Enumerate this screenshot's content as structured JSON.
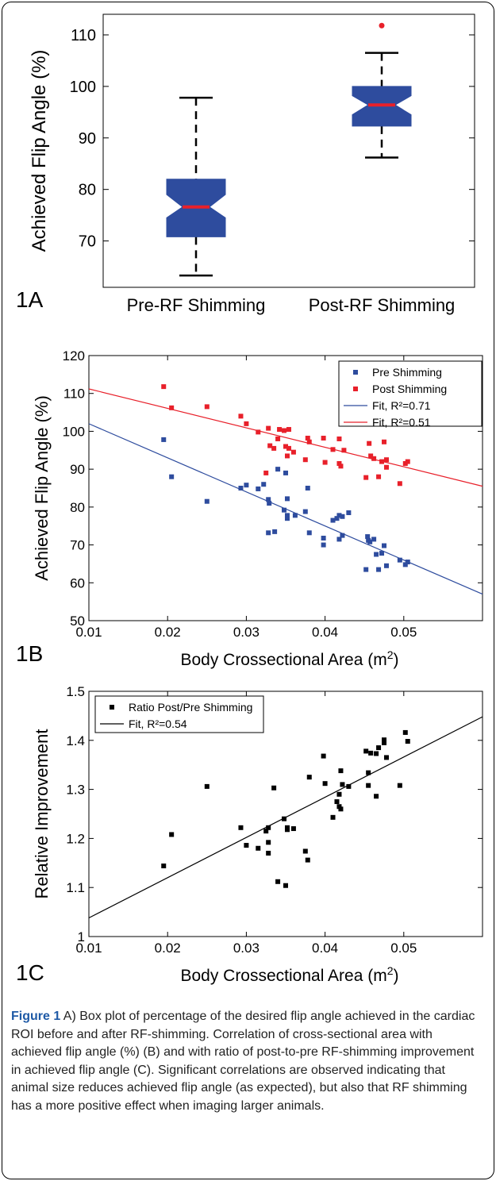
{
  "chart_data": [
    {
      "type": "box",
      "panel_label": "1A",
      "ylabel": "Achieved Flip Angle (%)",
      "ylim": [
        61,
        114
      ],
      "yticks": [
        70,
        80,
        90,
        100,
        110
      ],
      "categories": [
        "Pre-RF Shimming",
        "Post-RF Shimming"
      ],
      "boxes": [
        {
          "whisker_low": 63.3,
          "q1": 70.8,
          "notch_low": 74.5,
          "median": 76.6,
          "notch_high": 79.0,
          "q3": 82.0,
          "whisker_high": 97.8,
          "outliers": []
        },
        {
          "whisker_low": 86.2,
          "q1": 92.3,
          "notch_low": 94.5,
          "median": 96.4,
          "notch_high": 98.2,
          "q3": 100.0,
          "whisker_high": 106.5,
          "outliers": [
            111.8
          ]
        }
      ],
      "colors": {
        "box": "#2e4c9e",
        "median": "#e8202a",
        "outlier": "#e8202a"
      }
    },
    {
      "type": "scatter",
      "panel_label": "1B",
      "xlabel": "Body Crossectional Area (m",
      "xlabel_sup": "2",
      "xlabel_end": ")",
      "ylabel": "Achieved Flip Angle (%)",
      "xlim": [
        0.01,
        0.06
      ],
      "ylim": [
        50,
        120
      ],
      "xticks": [
        "0.01",
        "0.02",
        "0.03",
        "0.04",
        "0.05"
      ],
      "yticks": [
        "50",
        "60",
        "70",
        "80",
        "90",
        "100",
        "110",
        "120"
      ],
      "legend": [
        "Pre Shimming",
        "Post Shimming",
        "Fit, R²=0.71",
        "Fit, R²=0.51"
      ],
      "series": [
        {
          "name": "Pre Shimming",
          "color": "#2e4c9e",
          "points": [
            [
              0.0195,
              97.8
            ],
            [
              0.0205,
              88.0
            ],
            [
              0.025,
              81.5
            ],
            [
              0.0293,
              85.0
            ],
            [
              0.03,
              85.8
            ],
            [
              0.0315,
              84.8
            ],
            [
              0.0322,
              86.0
            ],
            [
              0.0328,
              73.2
            ],
            [
              0.0328,
              82.0
            ],
            [
              0.0329,
              81.0
            ],
            [
              0.0336,
              73.5
            ],
            [
              0.034,
              90.0
            ],
            [
              0.0348,
              79.2
            ],
            [
              0.035,
              89.0
            ],
            [
              0.0352,
              77.8
            ],
            [
              0.0352,
              77.0
            ],
            [
              0.0352,
              82.2
            ],
            [
              0.0362,
              77.8
            ],
            [
              0.0375,
              78.8
            ],
            [
              0.0378,
              85.0
            ],
            [
              0.038,
              73.2
            ],
            [
              0.0398,
              71.8
            ],
            [
              0.0398,
              70.0
            ],
            [
              0.041,
              76.5
            ],
            [
              0.0415,
              77.0
            ],
            [
              0.0418,
              77.8
            ],
            [
              0.0418,
              71.5
            ],
            [
              0.0422,
              77.5
            ],
            [
              0.0422,
              72.5
            ],
            [
              0.043,
              78.5
            ],
            [
              0.0452,
              63.5
            ],
            [
              0.0454,
              72.2
            ],
            [
              0.0455,
              71.2
            ],
            [
              0.0457,
              70.8
            ],
            [
              0.0462,
              71.5
            ],
            [
              0.0465,
              67.5
            ],
            [
              0.0468,
              63.5
            ],
            [
              0.0472,
              67.8
            ],
            [
              0.0475,
              69.8
            ],
            [
              0.0478,
              64.5
            ],
            [
              0.0495,
              66.0
            ],
            [
              0.0502,
              64.8
            ],
            [
              0.0505,
              65.5
            ]
          ]
        },
        {
          "name": "Post Shimming",
          "color": "#e8202a",
          "points": [
            [
              0.0195,
              111.8
            ],
            [
              0.0205,
              106.2
            ],
            [
              0.025,
              106.5
            ],
            [
              0.0293,
              104.0
            ],
            [
              0.03,
              102.0
            ],
            [
              0.0315,
              99.8
            ],
            [
              0.0325,
              89.0
            ],
            [
              0.0328,
              100.8
            ],
            [
              0.033,
              96.2
            ],
            [
              0.0335,
              95.5
            ],
            [
              0.034,
              98.0
            ],
            [
              0.0342,
              100.5
            ],
            [
              0.0348,
              100.2
            ],
            [
              0.035,
              96.0
            ],
            [
              0.0352,
              93.5
            ],
            [
              0.0354,
              95.5
            ],
            [
              0.0354,
              100.5
            ],
            [
              0.036,
              94.5
            ],
            [
              0.0375,
              92.5
            ],
            [
              0.0378,
              98.2
            ],
            [
              0.038,
              97.2
            ],
            [
              0.0398,
              98.2
            ],
            [
              0.04,
              91.8
            ],
            [
              0.041,
              95.2
            ],
            [
              0.0418,
              98.0
            ],
            [
              0.0418,
              91.5
            ],
            [
              0.042,
              90.8
            ],
            [
              0.0422,
              103.2
            ],
            [
              0.0424,
              95.0
            ],
            [
              0.0432,
              102.5
            ],
            [
              0.0452,
              87.8
            ],
            [
              0.0456,
              96.8
            ],
            [
              0.0458,
              93.5
            ],
            [
              0.0462,
              92.8
            ],
            [
              0.0468,
              88.0
            ],
            [
              0.0472,
              92.0
            ],
            [
              0.0475,
              97.2
            ],
            [
              0.0478,
              92.5
            ],
            [
              0.0478,
              90.5
            ],
            [
              0.0495,
              86.2
            ],
            [
              0.0502,
              91.5
            ],
            [
              0.0505,
              92.0
            ]
          ]
        }
      ],
      "fits": [
        {
          "name": "Fit, R²=0.71",
          "color": "#2e4c9e",
          "x": [
            0.01,
            0.06
          ],
          "y": [
            102.0,
            57.0
          ]
        },
        {
          "name": "Fit, R²=0.51",
          "color": "#e8202a",
          "x": [
            0.01,
            0.06
          ],
          "y": [
            111.2,
            85.5
          ]
        }
      ]
    },
    {
      "type": "scatter",
      "panel_label": "1C",
      "xlabel": "Body Crossectional Area (m",
      "xlabel_sup": "2",
      "xlabel_end": ")",
      "ylabel": "Relative Improvement",
      "xlim": [
        0.01,
        0.06
      ],
      "ylim": [
        1.0,
        1.5
      ],
      "xticks": [
        "0.01",
        "0.02",
        "0.03",
        "0.04",
        "0.05"
      ],
      "yticks": [
        "1",
        "1.1",
        "1.2",
        "1.3",
        "1.4",
        "1.5"
      ],
      "legend": [
        "Ratio Post/Pre Shimming",
        "Fit, R²=0.54"
      ],
      "series": [
        {
          "name": "Ratio Post/Pre Shimming",
          "color": "#000000",
          "points": [
            [
              0.0195,
              1.144
            ],
            [
              0.0205,
              1.208
            ],
            [
              0.025,
              1.306
            ],
            [
              0.0293,
              1.222
            ],
            [
              0.03,
              1.186
            ],
            [
              0.0315,
              1.18
            ],
            [
              0.0325,
              1.215
            ],
            [
              0.0328,
              1.222
            ],
            [
              0.0328,
              1.192
            ],
            [
              0.0328,
              1.17
            ],
            [
              0.0335,
              1.303
            ],
            [
              0.034,
              1.112
            ],
            [
              0.0348,
              1.24
            ],
            [
              0.035,
              1.104
            ],
            [
              0.0352,
              1.222
            ],
            [
              0.0352,
              1.218
            ],
            [
              0.036,
              1.22
            ],
            [
              0.0375,
              1.174
            ],
            [
              0.0378,
              1.156
            ],
            [
              0.038,
              1.325
            ],
            [
              0.0398,
              1.368
            ],
            [
              0.04,
              1.312
            ],
            [
              0.041,
              1.243
            ],
            [
              0.0415,
              1.275
            ],
            [
              0.0418,
              1.29
            ],
            [
              0.0418,
              1.265
            ],
            [
              0.042,
              1.26
            ],
            [
              0.042,
              1.338
            ],
            [
              0.0422,
              1.31
            ],
            [
              0.043,
              1.306
            ],
            [
              0.0452,
              1.378
            ],
            [
              0.0455,
              1.334
            ],
            [
              0.0455,
              1.308
            ],
            [
              0.0458,
              1.374
            ],
            [
              0.0465,
              1.286
            ],
            [
              0.0465,
              1.373
            ],
            [
              0.0468,
              1.385
            ],
            [
              0.0475,
              1.395
            ],
            [
              0.0475,
              1.401
            ],
            [
              0.0478,
              1.365
            ],
            [
              0.0495,
              1.308
            ],
            [
              0.0502,
              1.416
            ],
            [
              0.0505,
              1.398
            ]
          ]
        }
      ],
      "fits": [
        {
          "name": "Fit, R²=0.54",
          "color": "#000000",
          "x": [
            0.01,
            0.06
          ],
          "y": [
            1.038,
            1.448
          ]
        }
      ]
    }
  ],
  "caption": {
    "label": "Figure 1",
    "text": " A) Box plot of percentage of the desired flip angle achieved in the cardiac ROI before and after RF-shimming. Correlation of cross-sectional area with achieved flip angle (%) (B) and with ratio of post-to-pre RF-shimming improvement in achieved flip angle (C). Significant correlations are observed indicating that animal size reduces achieved flip angle (as expected), but also that RF shimming has a more positive effect when imaging larger animals."
  }
}
